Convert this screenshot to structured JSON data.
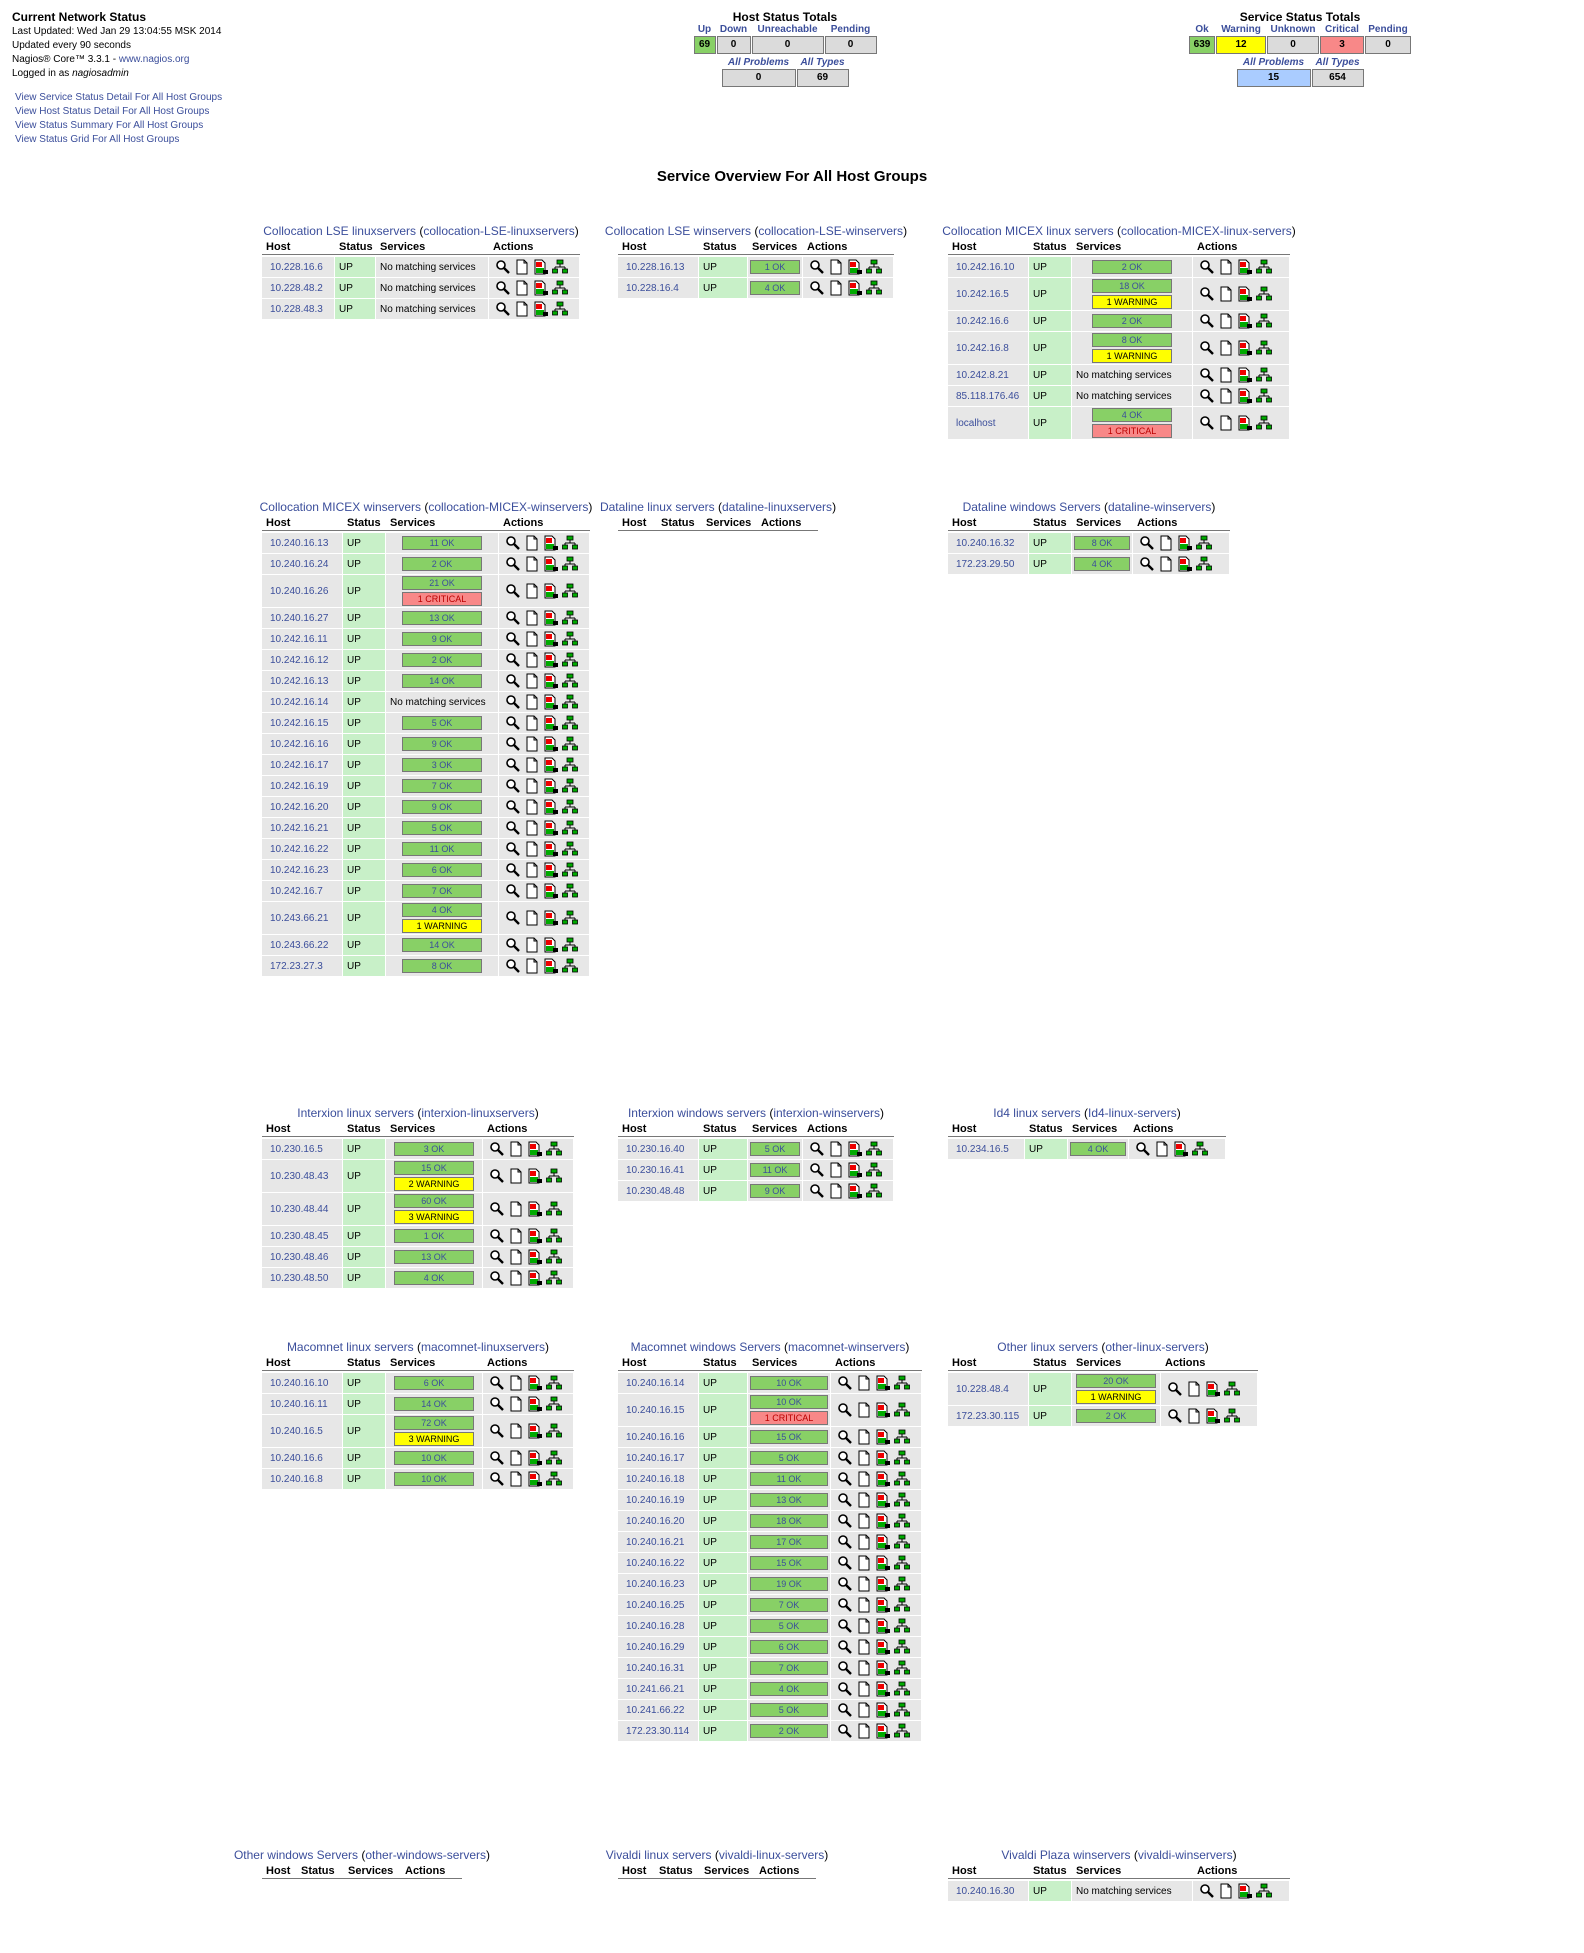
{
  "header": {
    "title": "Current Network Status",
    "last_updated": "Last Updated: Wed Jan 29 13:04:55 MSK 2014",
    "update_interval": "Updated every 90 seconds",
    "version": "Nagios® Core™ 3.3.1 - ",
    "version_link": "www.nagios.org",
    "logged_in_prefix": "Logged in as ",
    "logged_in_user": "nagiosadmin",
    "links": [
      "View Service Status Detail For All Host Groups",
      "View Host Status Detail For All Host Groups",
      "View Status Summary For All Host Groups",
      "View Status Grid For All Host Groups"
    ]
  },
  "host_totals": {
    "title": "Host Status Totals",
    "headers": [
      "Up",
      "Down",
      "Unreachable",
      "Pending"
    ],
    "values": [
      "69",
      "0",
      "0",
      "0"
    ],
    "sub_headers": [
      "All Problems",
      "All Types"
    ],
    "sub_values": [
      "0",
      "69"
    ]
  },
  "service_totals": {
    "title": "Service Status Totals",
    "headers": [
      "Ok",
      "Warning",
      "Unknown",
      "Critical",
      "Pending"
    ],
    "values": [
      "639",
      "12",
      "0",
      "3",
      "0"
    ],
    "sub_headers": [
      "All Problems",
      "All Types"
    ],
    "sub_values": [
      "15",
      "654"
    ]
  },
  "page_title": "Service Overview For All Host Groups",
  "columns": [
    "Host",
    "Status",
    "Services",
    "Actions"
  ],
  "no_match": "No matching services",
  "colors": {
    "ok": "#88d066",
    "warning": "#ffff00",
    "critical": "#f88888",
    "status_up": "#c8f0c8"
  },
  "groups": [
    {
      "name": "Collocation LSE linuxservers",
      "alias": "collocation-LSE-linuxservers",
      "hosts": [
        {
          "host": "10.228.16.6",
          "status": "UP",
          "services": []
        },
        {
          "host": "10.228.48.2",
          "status": "UP",
          "services": []
        },
        {
          "host": "10.228.48.3",
          "status": "UP",
          "services": []
        }
      ]
    },
    {
      "name": "Collocation LSE winservers",
      "alias": "collocation-LSE-winservers",
      "hosts": [
        {
          "host": "10.228.16.13",
          "status": "UP",
          "services": [
            {
              "t": "ok",
              "label": "1 OK"
            }
          ]
        },
        {
          "host": "10.228.16.4",
          "status": "UP",
          "services": [
            {
              "t": "ok",
              "label": "4 OK"
            }
          ]
        }
      ]
    },
    {
      "name": "Collocation MICEX linux servers",
      "alias": "collocation-MICEX-linux-servers",
      "hosts": [
        {
          "host": "10.242.16.10",
          "status": "UP",
          "services": [
            {
              "t": "ok",
              "label": "2 OK"
            }
          ]
        },
        {
          "host": "10.242.16.5",
          "status": "UP",
          "services": [
            {
              "t": "ok",
              "label": "18 OK"
            },
            {
              "t": "warning",
              "label": "1 WARNING"
            }
          ]
        },
        {
          "host": "10.242.16.6",
          "status": "UP",
          "services": [
            {
              "t": "ok",
              "label": "2 OK"
            }
          ]
        },
        {
          "host": "10.242.16.8",
          "status": "UP",
          "services": [
            {
              "t": "ok",
              "label": "8 OK"
            },
            {
              "t": "warning",
              "label": "1 WARNING"
            }
          ]
        },
        {
          "host": "10.242.8.21",
          "status": "UP",
          "services": []
        },
        {
          "host": "85.118.176.46",
          "status": "UP",
          "services": []
        },
        {
          "host": "localhost",
          "status": "UP",
          "services": [
            {
              "t": "ok",
              "label": "4 OK"
            },
            {
              "t": "critical",
              "label": "1 CRITICAL"
            }
          ]
        }
      ]
    },
    {
      "name": "Collocation MICEX winservers",
      "alias": "collocation-MICEX-winservers",
      "hosts": [
        {
          "host": "10.240.16.13",
          "status": "UP",
          "services": [
            {
              "t": "ok",
              "label": "11 OK"
            }
          ]
        },
        {
          "host": "10.240.16.24",
          "status": "UP",
          "services": [
            {
              "t": "ok",
              "label": "2 OK"
            }
          ]
        },
        {
          "host": "10.240.16.26",
          "status": "UP",
          "services": [
            {
              "t": "ok",
              "label": "21 OK"
            },
            {
              "t": "critical",
              "label": "1 CRITICAL"
            }
          ]
        },
        {
          "host": "10.240.16.27",
          "status": "UP",
          "services": [
            {
              "t": "ok",
              "label": "13 OK"
            }
          ]
        },
        {
          "host": "10.242.16.11",
          "status": "UP",
          "services": [
            {
              "t": "ok",
              "label": "9 OK"
            }
          ]
        },
        {
          "host": "10.242.16.12",
          "status": "UP",
          "services": [
            {
              "t": "ok",
              "label": "2 OK"
            }
          ]
        },
        {
          "host": "10.242.16.13",
          "status": "UP",
          "services": [
            {
              "t": "ok",
              "label": "14 OK"
            }
          ]
        },
        {
          "host": "10.242.16.14",
          "status": "UP",
          "services": []
        },
        {
          "host": "10.242.16.15",
          "status": "UP",
          "services": [
            {
              "t": "ok",
              "label": "5 OK"
            }
          ]
        },
        {
          "host": "10.242.16.16",
          "status": "UP",
          "services": [
            {
              "t": "ok",
              "label": "9 OK"
            }
          ]
        },
        {
          "host": "10.242.16.17",
          "status": "UP",
          "services": [
            {
              "t": "ok",
              "label": "3 OK"
            }
          ]
        },
        {
          "host": "10.242.16.19",
          "status": "UP",
          "services": [
            {
              "t": "ok",
              "label": "7 OK"
            }
          ]
        },
        {
          "host": "10.242.16.20",
          "status": "UP",
          "services": [
            {
              "t": "ok",
              "label": "9 OK"
            }
          ]
        },
        {
          "host": "10.242.16.21",
          "status": "UP",
          "services": [
            {
              "t": "ok",
              "label": "5 OK"
            }
          ]
        },
        {
          "host": "10.242.16.22",
          "status": "UP",
          "services": [
            {
              "t": "ok",
              "label": "11 OK"
            }
          ]
        },
        {
          "host": "10.242.16.23",
          "status": "UP",
          "services": [
            {
              "t": "ok",
              "label": "6 OK"
            }
          ]
        },
        {
          "host": "10.242.16.7",
          "status": "UP",
          "services": [
            {
              "t": "ok",
              "label": "7 OK"
            }
          ]
        },
        {
          "host": "10.243.66.21",
          "status": "UP",
          "services": [
            {
              "t": "ok",
              "label": "4 OK"
            },
            {
              "t": "warning",
              "label": "1 WARNING"
            }
          ]
        },
        {
          "host": "10.243.66.22",
          "status": "UP",
          "services": [
            {
              "t": "ok",
              "label": "14 OK"
            }
          ]
        },
        {
          "host": "172.23.27.3",
          "status": "UP",
          "services": [
            {
              "t": "ok",
              "label": "8 OK"
            }
          ]
        }
      ]
    },
    {
      "name": "Dataline linux servers",
      "alias": "dataline-linuxservers",
      "hosts": []
    },
    {
      "name": "Dataline windows Servers",
      "alias": "dataline-winservers",
      "hosts": [
        {
          "host": "10.240.16.32",
          "status": "UP",
          "services": [
            {
              "t": "ok",
              "label": "8 OK"
            }
          ]
        },
        {
          "host": "172.23.29.50",
          "status": "UP",
          "services": [
            {
              "t": "ok",
              "label": "4 OK"
            }
          ]
        }
      ]
    },
    {
      "name": "Interxion linux servers",
      "alias": "interxion-linuxservers",
      "hosts": [
        {
          "host": "10.230.16.5",
          "status": "UP",
          "services": [
            {
              "t": "ok",
              "label": "3 OK"
            }
          ]
        },
        {
          "host": "10.230.48.43",
          "status": "UP",
          "services": [
            {
              "t": "ok",
              "label": "15 OK"
            },
            {
              "t": "warning",
              "label": "2 WARNING"
            }
          ]
        },
        {
          "host": "10.230.48.44",
          "status": "UP",
          "services": [
            {
              "t": "ok",
              "label": "60 OK"
            },
            {
              "t": "warning",
              "label": "3 WARNING"
            }
          ]
        },
        {
          "host": "10.230.48.45",
          "status": "UP",
          "services": [
            {
              "t": "ok",
              "label": "1 OK"
            }
          ]
        },
        {
          "host": "10.230.48.46",
          "status": "UP",
          "services": [
            {
              "t": "ok",
              "label": "13 OK"
            }
          ]
        },
        {
          "host": "10.230.48.50",
          "status": "UP",
          "services": [
            {
              "t": "ok",
              "label": "4 OK"
            }
          ]
        }
      ]
    },
    {
      "name": "Interxion windows servers",
      "alias": "interxion-winservers",
      "hosts": [
        {
          "host": "10.230.16.40",
          "status": "UP",
          "services": [
            {
              "t": "ok",
              "label": "5 OK"
            }
          ]
        },
        {
          "host": "10.230.16.41",
          "status": "UP",
          "services": [
            {
              "t": "ok",
              "label": "11 OK"
            }
          ]
        },
        {
          "host": "10.230.48.48",
          "status": "UP",
          "services": [
            {
              "t": "ok",
              "label": "9 OK"
            }
          ]
        }
      ]
    },
    {
      "name": "Id4 linux servers",
      "alias": "Id4-linux-servers",
      "hosts": [
        {
          "host": "10.234.16.5",
          "status": "UP",
          "services": [
            {
              "t": "ok",
              "label": "4 OK"
            }
          ]
        }
      ]
    },
    {
      "name": "Macomnet linux servers",
      "alias": "macomnet-linuxservers",
      "hosts": [
        {
          "host": "10.240.16.10",
          "status": "UP",
          "services": [
            {
              "t": "ok",
              "label": "6 OK"
            }
          ]
        },
        {
          "host": "10.240.16.11",
          "status": "UP",
          "services": [
            {
              "t": "ok",
              "label": "14 OK"
            }
          ]
        },
        {
          "host": "10.240.16.5",
          "status": "UP",
          "services": [
            {
              "t": "ok",
              "label": "72 OK"
            },
            {
              "t": "warning",
              "label": "3 WARNING"
            }
          ]
        },
        {
          "host": "10.240.16.6",
          "status": "UP",
          "services": [
            {
              "t": "ok",
              "label": "10 OK"
            }
          ]
        },
        {
          "host": "10.240.16.8",
          "status": "UP",
          "services": [
            {
              "t": "ok",
              "label": "10 OK"
            }
          ]
        }
      ]
    },
    {
      "name": "Macomnet windows Servers",
      "alias": "macomnet-winservers",
      "hosts": [
        {
          "host": "10.240.16.14",
          "status": "UP",
          "services": [
            {
              "t": "ok",
              "label": "10 OK"
            }
          ]
        },
        {
          "host": "10.240.16.15",
          "status": "UP",
          "services": [
            {
              "t": "ok",
              "label": "10 OK"
            },
            {
              "t": "critical",
              "label": "1 CRITICAL"
            }
          ]
        },
        {
          "host": "10.240.16.16",
          "status": "UP",
          "services": [
            {
              "t": "ok",
              "label": "15 OK"
            }
          ]
        },
        {
          "host": "10.240.16.17",
          "status": "UP",
          "services": [
            {
              "t": "ok",
              "label": "5 OK"
            }
          ]
        },
        {
          "host": "10.240.16.18",
          "status": "UP",
          "services": [
            {
              "t": "ok",
              "label": "11 OK"
            }
          ]
        },
        {
          "host": "10.240.16.19",
          "status": "UP",
          "services": [
            {
              "t": "ok",
              "label": "13 OK"
            }
          ]
        },
        {
          "host": "10.240.16.20",
          "status": "UP",
          "services": [
            {
              "t": "ok",
              "label": "18 OK"
            }
          ]
        },
        {
          "host": "10.240.16.21",
          "status": "UP",
          "services": [
            {
              "t": "ok",
              "label": "17 OK"
            }
          ]
        },
        {
          "host": "10.240.16.22",
          "status": "UP",
          "services": [
            {
              "t": "ok",
              "label": "15 OK"
            }
          ]
        },
        {
          "host": "10.240.16.23",
          "status": "UP",
          "services": [
            {
              "t": "ok",
              "label": "19 OK"
            }
          ]
        },
        {
          "host": "10.240.16.25",
          "status": "UP",
          "services": [
            {
              "t": "ok",
              "label": "7 OK"
            }
          ]
        },
        {
          "host": "10.240.16.28",
          "status": "UP",
          "services": [
            {
              "t": "ok",
              "label": "5 OK"
            }
          ]
        },
        {
          "host": "10.240.16.29",
          "status": "UP",
          "services": [
            {
              "t": "ok",
              "label": "6 OK"
            }
          ]
        },
        {
          "host": "10.240.16.31",
          "status": "UP",
          "services": [
            {
              "t": "ok",
              "label": "7 OK"
            }
          ]
        },
        {
          "host": "10.241.66.21",
          "status": "UP",
          "services": [
            {
              "t": "ok",
              "label": "4 OK"
            }
          ]
        },
        {
          "host": "10.241.66.22",
          "status": "UP",
          "services": [
            {
              "t": "ok",
              "label": "5 OK"
            }
          ]
        },
        {
          "host": "172.23.30.114",
          "status": "UP",
          "services": [
            {
              "t": "ok",
              "label": "2 OK"
            }
          ]
        }
      ]
    },
    {
      "name": "Other linux servers",
      "alias": "other-linux-servers",
      "hosts": [
        {
          "host": "10.228.48.4",
          "status": "UP",
          "services": [
            {
              "t": "ok",
              "label": "20 OK"
            },
            {
              "t": "warning",
              "label": "1 WARNING"
            }
          ]
        },
        {
          "host": "172.23.30.115",
          "status": "UP",
          "services": [
            {
              "t": "ok",
              "label": "2 OK"
            }
          ]
        }
      ]
    },
    {
      "name": "Other windows Servers",
      "alias": "other-windows-servers",
      "hosts": []
    },
    {
      "name": "Vivaldi linux servers",
      "alias": "vivaldi-linux-servers",
      "hosts": []
    },
    {
      "name": "Vivaldi Plaza winservers",
      "alias": "vivaldi-winservers",
      "hosts": [
        {
          "host": "10.240.16.30",
          "status": "UP",
          "services": []
        }
      ]
    }
  ]
}
